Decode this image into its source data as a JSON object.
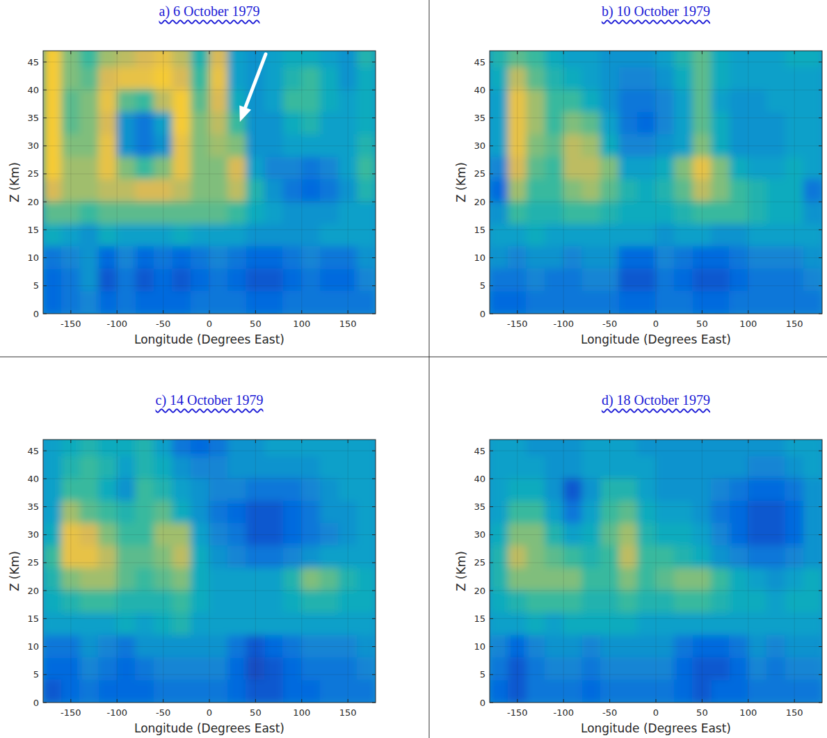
{
  "chart_data": [
    {
      "type": "heatmap",
      "title": "a) 6 October 1979",
      "x_label": "Longitude (Degrees East)",
      "y_label": "Z (Km)",
      "xlim": [
        -180,
        180
      ],
      "ylim": [
        0,
        47
      ],
      "xticks": [
        -150,
        -100,
        -50,
        0,
        50,
        100,
        150
      ],
      "yticks": [
        0,
        5,
        10,
        15,
        20,
        25,
        30,
        35,
        40,
        45
      ],
      "grid": true,
      "arrow": {
        "from": [
          61,
          46.4
        ],
        "to": [
          33,
          34.3
        ]
      },
      "cell_lon": [
        -170,
        -150,
        -130,
        -110,
        -90,
        -70,
        -50,
        -30,
        -10,
        10,
        30,
        50,
        70,
        90,
        110,
        130,
        150,
        170
      ],
      "cell_z": [
        46,
        42,
        38,
        34,
        30,
        26,
        22,
        18,
        14,
        10,
        6,
        2
      ],
      "cells": [
        [
          0.85,
          0.6,
          0.5,
          0.65,
          0.7,
          0.75,
          0.8,
          0.7,
          0.45,
          0.75,
          0.35,
          0.3,
          0.35,
          0.4,
          0.4,
          0.35,
          0.3,
          0.45
        ],
        [
          0.85,
          0.6,
          0.55,
          0.75,
          0.8,
          0.8,
          0.85,
          0.75,
          0.5,
          0.8,
          0.35,
          0.3,
          0.35,
          0.45,
          0.5,
          0.4,
          0.3,
          0.4
        ],
        [
          0.85,
          0.55,
          0.6,
          0.8,
          0.55,
          0.5,
          0.7,
          0.85,
          0.55,
          0.75,
          0.4,
          0.3,
          0.35,
          0.5,
          0.5,
          0.4,
          0.35,
          0.4
        ],
        [
          0.85,
          0.55,
          0.6,
          0.75,
          0.3,
          0.2,
          0.35,
          0.85,
          0.6,
          0.7,
          0.5,
          0.3,
          0.3,
          0.4,
          0.45,
          0.35,
          0.35,
          0.4
        ],
        [
          0.85,
          0.6,
          0.6,
          0.8,
          0.3,
          0.2,
          0.3,
          0.8,
          0.6,
          0.65,
          0.6,
          0.3,
          0.3,
          0.35,
          0.35,
          0.35,
          0.35,
          0.45
        ],
        [
          0.85,
          0.65,
          0.65,
          0.8,
          0.6,
          0.5,
          0.6,
          0.8,
          0.6,
          0.6,
          0.75,
          0.35,
          0.25,
          0.25,
          0.2,
          0.25,
          0.35,
          0.5
        ],
        [
          0.75,
          0.65,
          0.65,
          0.7,
          0.7,
          0.75,
          0.75,
          0.7,
          0.6,
          0.6,
          0.7,
          0.45,
          0.3,
          0.2,
          0.15,
          0.2,
          0.3,
          0.45
        ],
        [
          0.55,
          0.55,
          0.5,
          0.55,
          0.55,
          0.55,
          0.55,
          0.55,
          0.55,
          0.55,
          0.5,
          0.4,
          0.35,
          0.3,
          0.3,
          0.3,
          0.35,
          0.35
        ],
        [
          0.4,
          0.35,
          0.3,
          0.4,
          0.35,
          0.35,
          0.35,
          0.4,
          0.35,
          0.35,
          0.35,
          0.3,
          0.3,
          0.3,
          0.3,
          0.35,
          0.35,
          0.35
        ],
        [
          0.2,
          0.25,
          0.3,
          0.15,
          0.25,
          0.15,
          0.2,
          0.15,
          0.2,
          0.25,
          0.2,
          0.15,
          0.15,
          0.2,
          0.25,
          0.2,
          0.2,
          0.3
        ],
        [
          0.15,
          0.2,
          0.3,
          0.1,
          0.2,
          0.1,
          0.15,
          0.1,
          0.15,
          0.2,
          0.15,
          0.1,
          0.1,
          0.15,
          0.2,
          0.15,
          0.15,
          0.25
        ],
        [
          0.15,
          0.2,
          0.25,
          0.15,
          0.2,
          0.15,
          0.15,
          0.15,
          0.2,
          0.2,
          0.2,
          0.15,
          0.15,
          0.2,
          0.2,
          0.2,
          0.2,
          0.2
        ]
      ]
    },
    {
      "type": "heatmap",
      "title": "b) 10 October 1979",
      "x_label": "Longitude (Degrees East)",
      "y_label": "Z (Km)",
      "xlim": [
        -180,
        180
      ],
      "ylim": [
        0,
        47
      ],
      "xticks": [
        -150,
        -100,
        -50,
        0,
        50,
        100,
        150
      ],
      "yticks": [
        0,
        5,
        10,
        15,
        20,
        25,
        30,
        35,
        40,
        45
      ],
      "grid": true,
      "cell_lon": [
        -170,
        -150,
        -130,
        -110,
        -90,
        -70,
        -50,
        -30,
        -10,
        10,
        30,
        50,
        70,
        90,
        110,
        130,
        150,
        170
      ],
      "cell_z": [
        46,
        42,
        38,
        34,
        30,
        26,
        22,
        18,
        14,
        10,
        6,
        2
      ],
      "cells": [
        [
          0.45,
          0.55,
          0.5,
          0.4,
          0.35,
          0.35,
          0.3,
          0.3,
          0.3,
          0.35,
          0.45,
          0.55,
          0.4,
          0.35,
          0.35,
          0.35,
          0.4,
          0.4
        ],
        [
          0.4,
          0.7,
          0.55,
          0.45,
          0.4,
          0.35,
          0.3,
          0.25,
          0.25,
          0.3,
          0.4,
          0.55,
          0.4,
          0.35,
          0.35,
          0.35,
          0.35,
          0.35
        ],
        [
          0.35,
          0.8,
          0.65,
          0.5,
          0.5,
          0.4,
          0.3,
          0.2,
          0.2,
          0.25,
          0.35,
          0.55,
          0.35,
          0.3,
          0.3,
          0.35,
          0.35,
          0.35
        ],
        [
          0.35,
          0.8,
          0.65,
          0.5,
          0.6,
          0.55,
          0.35,
          0.2,
          0.15,
          0.25,
          0.35,
          0.55,
          0.4,
          0.3,
          0.3,
          0.3,
          0.35,
          0.35
        ],
        [
          0.35,
          0.8,
          0.6,
          0.55,
          0.7,
          0.65,
          0.4,
          0.25,
          0.25,
          0.3,
          0.35,
          0.6,
          0.4,
          0.3,
          0.3,
          0.3,
          0.35,
          0.35
        ],
        [
          0.25,
          0.75,
          0.55,
          0.5,
          0.7,
          0.7,
          0.6,
          0.35,
          0.35,
          0.4,
          0.6,
          0.8,
          0.6,
          0.4,
          0.35,
          0.35,
          0.4,
          0.35
        ],
        [
          0.15,
          0.65,
          0.5,
          0.5,
          0.6,
          0.65,
          0.55,
          0.45,
          0.4,
          0.45,
          0.55,
          0.7,
          0.6,
          0.5,
          0.45,
          0.4,
          0.4,
          0.2
        ],
        [
          0.3,
          0.5,
          0.45,
          0.45,
          0.5,
          0.5,
          0.45,
          0.4,
          0.4,
          0.4,
          0.45,
          0.5,
          0.5,
          0.5,
          0.45,
          0.4,
          0.4,
          0.3
        ],
        [
          0.35,
          0.35,
          0.4,
          0.35,
          0.35,
          0.35,
          0.35,
          0.35,
          0.35,
          0.3,
          0.35,
          0.35,
          0.3,
          0.3,
          0.35,
          0.35,
          0.35,
          0.35
        ],
        [
          0.3,
          0.25,
          0.3,
          0.3,
          0.25,
          0.3,
          0.3,
          0.15,
          0.15,
          0.25,
          0.2,
          0.15,
          0.15,
          0.2,
          0.25,
          0.25,
          0.25,
          0.3
        ],
        [
          0.2,
          0.2,
          0.25,
          0.2,
          0.2,
          0.25,
          0.25,
          0.1,
          0.1,
          0.2,
          0.15,
          0.1,
          0.1,
          0.15,
          0.2,
          0.2,
          0.2,
          0.25
        ],
        [
          0.15,
          0.15,
          0.2,
          0.2,
          0.2,
          0.2,
          0.2,
          0.15,
          0.15,
          0.2,
          0.2,
          0.15,
          0.15,
          0.2,
          0.2,
          0.2,
          0.2,
          0.2
        ]
      ]
    },
    {
      "type": "heatmap",
      "title": "c) 14 October 1979",
      "x_label": "Longitude (Degrees East)",
      "y_label": "Z (Km)",
      "xlim": [
        -180,
        180
      ],
      "ylim": [
        0,
        47
      ],
      "xticks": [
        -150,
        -100,
        -50,
        0,
        50,
        100,
        150
      ],
      "yticks": [
        0,
        5,
        10,
        15,
        20,
        25,
        30,
        35,
        40,
        45
      ],
      "grid": true,
      "cell_lon": [
        -170,
        -150,
        -130,
        -110,
        -90,
        -70,
        -50,
        -30,
        -10,
        10,
        30,
        50,
        70,
        90,
        110,
        130,
        150,
        170
      ],
      "cell_z": [
        46,
        42,
        38,
        34,
        30,
        26,
        22,
        18,
        14,
        10,
        6,
        2
      ],
      "cells": [
        [
          0.35,
          0.4,
          0.45,
          0.4,
          0.4,
          0.45,
          0.35,
          0.2,
          0.15,
          0.2,
          0.3,
          0.3,
          0.35,
          0.35,
          0.35,
          0.35,
          0.35,
          0.35
        ],
        [
          0.35,
          0.45,
          0.5,
          0.45,
          0.35,
          0.45,
          0.4,
          0.3,
          0.25,
          0.25,
          0.3,
          0.3,
          0.3,
          0.3,
          0.3,
          0.35,
          0.35,
          0.35
        ],
        [
          0.35,
          0.5,
          0.5,
          0.4,
          0.3,
          0.5,
          0.45,
          0.35,
          0.3,
          0.25,
          0.25,
          0.2,
          0.2,
          0.2,
          0.25,
          0.3,
          0.35,
          0.35
        ],
        [
          0.35,
          0.65,
          0.55,
          0.5,
          0.45,
          0.5,
          0.55,
          0.4,
          0.3,
          0.2,
          0.15,
          0.1,
          0.1,
          0.15,
          0.2,
          0.3,
          0.3,
          0.35
        ],
        [
          0.4,
          0.8,
          0.75,
          0.6,
          0.5,
          0.5,
          0.65,
          0.65,
          0.35,
          0.25,
          0.2,
          0.1,
          0.1,
          0.15,
          0.2,
          0.25,
          0.3,
          0.35
        ],
        [
          0.5,
          0.8,
          0.8,
          0.7,
          0.55,
          0.55,
          0.6,
          0.7,
          0.4,
          0.3,
          0.25,
          0.2,
          0.2,
          0.25,
          0.3,
          0.35,
          0.35,
          0.35
        ],
        [
          0.45,
          0.6,
          0.65,
          0.65,
          0.55,
          0.5,
          0.55,
          0.6,
          0.4,
          0.35,
          0.35,
          0.35,
          0.35,
          0.45,
          0.6,
          0.55,
          0.45,
          0.4
        ],
        [
          0.4,
          0.45,
          0.5,
          0.5,
          0.45,
          0.45,
          0.45,
          0.5,
          0.4,
          0.35,
          0.35,
          0.35,
          0.35,
          0.4,
          0.45,
          0.45,
          0.4,
          0.4
        ],
        [
          0.35,
          0.35,
          0.35,
          0.35,
          0.4,
          0.35,
          0.4,
          0.45,
          0.35,
          0.35,
          0.35,
          0.35,
          0.35,
          0.35,
          0.35,
          0.35,
          0.35,
          0.35
        ],
        [
          0.2,
          0.2,
          0.3,
          0.25,
          0.2,
          0.3,
          0.3,
          0.3,
          0.3,
          0.3,
          0.2,
          0.1,
          0.15,
          0.2,
          0.25,
          0.25,
          0.25,
          0.3
        ],
        [
          0.15,
          0.15,
          0.25,
          0.2,
          0.15,
          0.2,
          0.25,
          0.25,
          0.25,
          0.25,
          0.15,
          0.08,
          0.1,
          0.15,
          0.2,
          0.2,
          0.2,
          0.25
        ],
        [
          0.1,
          0.15,
          0.2,
          0.15,
          0.15,
          0.15,
          0.2,
          0.2,
          0.2,
          0.2,
          0.15,
          0.1,
          0.1,
          0.15,
          0.15,
          0.2,
          0.2,
          0.2
        ]
      ]
    },
    {
      "type": "heatmap",
      "title": "d) 18 October 1979",
      "x_label": "Longitude (Degrees East)",
      "y_label": "Z (Km)",
      "xlim": [
        -180,
        180
      ],
      "ylim": [
        0,
        47
      ],
      "xticks": [
        -150,
        -100,
        -50,
        0,
        50,
        100,
        150
      ],
      "yticks": [
        0,
        5,
        10,
        15,
        20,
        25,
        30,
        35,
        40,
        45
      ],
      "grid": true,
      "cell_lon": [
        -170,
        -150,
        -130,
        -110,
        -90,
        -70,
        -50,
        -30,
        -10,
        10,
        30,
        50,
        70,
        90,
        110,
        130,
        150,
        170
      ],
      "cell_z": [
        46,
        42,
        38,
        34,
        30,
        26,
        22,
        18,
        14,
        10,
        6,
        2
      ],
      "cells": [
        [
          0.35,
          0.35,
          0.3,
          0.3,
          0.3,
          0.35,
          0.35,
          0.35,
          0.3,
          0.3,
          0.3,
          0.3,
          0.3,
          0.3,
          0.3,
          0.3,
          0.35,
          0.35
        ],
        [
          0.35,
          0.35,
          0.35,
          0.3,
          0.3,
          0.35,
          0.35,
          0.35,
          0.35,
          0.3,
          0.3,
          0.3,
          0.3,
          0.3,
          0.25,
          0.25,
          0.3,
          0.35
        ],
        [
          0.35,
          0.4,
          0.4,
          0.3,
          0.1,
          0.3,
          0.45,
          0.45,
          0.35,
          0.3,
          0.3,
          0.3,
          0.25,
          0.2,
          0.15,
          0.15,
          0.2,
          0.3
        ],
        [
          0.35,
          0.5,
          0.5,
          0.35,
          0.2,
          0.35,
          0.5,
          0.55,
          0.4,
          0.35,
          0.35,
          0.3,
          0.2,
          0.15,
          0.1,
          0.1,
          0.15,
          0.3
        ],
        [
          0.4,
          0.6,
          0.6,
          0.45,
          0.35,
          0.4,
          0.55,
          0.65,
          0.45,
          0.4,
          0.4,
          0.35,
          0.25,
          0.15,
          0.1,
          0.1,
          0.15,
          0.3
        ],
        [
          0.45,
          0.7,
          0.6,
          0.55,
          0.5,
          0.45,
          0.5,
          0.7,
          0.5,
          0.5,
          0.45,
          0.4,
          0.3,
          0.25,
          0.2,
          0.2,
          0.25,
          0.3
        ],
        [
          0.45,
          0.6,
          0.6,
          0.6,
          0.6,
          0.5,
          0.5,
          0.6,
          0.5,
          0.55,
          0.6,
          0.6,
          0.5,
          0.4,
          0.35,
          0.3,
          0.35,
          0.4
        ],
        [
          0.4,
          0.45,
          0.5,
          0.5,
          0.5,
          0.45,
          0.45,
          0.5,
          0.45,
          0.45,
          0.5,
          0.5,
          0.45,
          0.4,
          0.4,
          0.35,
          0.4,
          0.4
        ],
        [
          0.35,
          0.35,
          0.4,
          0.35,
          0.4,
          0.4,
          0.4,
          0.4,
          0.35,
          0.35,
          0.35,
          0.35,
          0.35,
          0.35,
          0.35,
          0.35,
          0.35,
          0.35
        ],
        [
          0.25,
          0.15,
          0.25,
          0.3,
          0.3,
          0.25,
          0.3,
          0.3,
          0.3,
          0.3,
          0.2,
          0.15,
          0.15,
          0.2,
          0.3,
          0.25,
          0.3,
          0.3
        ],
        [
          0.2,
          0.1,
          0.2,
          0.25,
          0.25,
          0.2,
          0.25,
          0.25,
          0.25,
          0.25,
          0.15,
          0.1,
          0.1,
          0.15,
          0.25,
          0.2,
          0.25,
          0.25
        ],
        [
          0.15,
          0.1,
          0.2,
          0.2,
          0.2,
          0.15,
          0.2,
          0.2,
          0.2,
          0.2,
          0.15,
          0.1,
          0.15,
          0.15,
          0.2,
          0.2,
          0.2,
          0.2
        ]
      ]
    }
  ]
}
